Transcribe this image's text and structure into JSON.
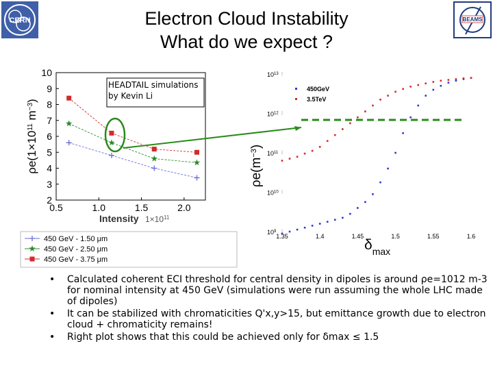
{
  "slide": {
    "title_line1": "Electron Cloud Instability",
    "title_line2": "What do we expect ?",
    "logo_left": "CERN",
    "logo_right": "BEAMS"
  },
  "bullets": [
    {
      "text": "Calculated coherent ECI threshold for central density in dipoles is around ρe=1012 m-3 for nominal intensity at 450 GeV (simulations were run assuming the whole LHC made of dipoles)"
    },
    {
      "text": "It can be stabilized with chromaticities Q'x,y>15, but emittance growth due to electron cloud + chromaticity remains!"
    },
    {
      "text": "Right plot shows that this could be achieved only for δmax ≤ 1.5"
    }
  ],
  "colors": {
    "blue": "#6b6bd8",
    "green": "#2e8b2e",
    "red": "#d42a2a",
    "annot_green": "#2a8a1a"
  },
  "chart_data": [
    {
      "type": "line",
      "annotation": "HEADTAIL simulations by Kevin Li",
      "xlabel": "Intensity",
      "xlabel_multiplier": "1×10",
      "xlabel_multiplier_exp": "11",
      "ylabel": "ρe(1×10",
      "ylabel_exp": "11",
      "ylabel_unit": " m",
      "ylabel_unit_exp": "−3",
      "ylabel_close": ")",
      "xlim": [
        0.5,
        2.25
      ],
      "ylim": [
        2,
        10
      ],
      "xticks": [
        "0.5",
        "1.0",
        "1.5",
        "2.0"
      ],
      "xtick_values": [
        0.5,
        1.0,
        1.5,
        2.0
      ],
      "yticks": [
        "2",
        "3",
        "4",
        "5",
        "6",
        "7",
        "8",
        "9",
        "10"
      ],
      "ytick_values": [
        2,
        3,
        4,
        5,
        6,
        7,
        8,
        9,
        10
      ],
      "series": [
        {
          "name": "450 GeV - 1.50 μm",
          "color": "#6b6bd8",
          "marker": "plus",
          "x": [
            0.65,
            1.15,
            1.65,
            2.15
          ],
          "y": [
            5.6,
            4.8,
            4.0,
            3.4
          ]
        },
        {
          "name": "450 GeV - 2.50 μm",
          "color": "#2e8b2e",
          "marker": "star",
          "x": [
            0.65,
            1.15,
            1.65,
            2.15
          ],
          "y": [
            6.8,
            5.6,
            4.6,
            4.35
          ]
        },
        {
          "name": "450 GeV - 3.75 μm",
          "color": "#d42a2a",
          "marker": "square",
          "x": [
            0.65,
            1.15,
            1.65,
            2.15
          ],
          "y": [
            8.4,
            6.2,
            5.2,
            5.0
          ]
        }
      ]
    },
    {
      "type": "scatter",
      "xlabel": "δ",
      "xlabel_sub": "max",
      "ylabel": "ρe(m",
      "ylabel_exp": "−3",
      "ylabel_close": ")",
      "xlim": [
        1.35,
        1.6
      ],
      "ylim_log10": [
        9,
        13
      ],
      "xticks": [
        "1.35",
        "1.4",
        "1.45",
        "1.5",
        "1.55",
        "1.6"
      ],
      "xtick_values": [
        1.35,
        1.4,
        1.45,
        1.5,
        1.55,
        1.6
      ],
      "yticks_base": "10",
      "yticks_exp": [
        "9",
        "10",
        "11",
        "12",
        "13"
      ],
      "ytick_values_log10": [
        9,
        10,
        11,
        12,
        13
      ],
      "series": [
        {
          "name": "450GeV",
          "color": "#2a3ad0",
          "x": [
            1.35,
            1.36,
            1.37,
            1.38,
            1.39,
            1.4,
            1.41,
            1.42,
            1.43,
            1.44,
            1.45,
            1.46,
            1.47,
            1.48,
            1.49,
            1.5,
            1.51,
            1.52,
            1.53,
            1.54,
            1.55,
            1.56,
            1.57,
            1.58,
            1.59,
            1.6
          ],
          "log10y": [
            8.95,
            9.0,
            9.05,
            9.1,
            9.15,
            9.2,
            9.25,
            9.3,
            9.35,
            9.45,
            9.6,
            9.75,
            9.95,
            10.25,
            10.6,
            11.0,
            11.5,
            11.9,
            12.2,
            12.45,
            12.6,
            12.7,
            12.78,
            12.83,
            12.87,
            12.9
          ]
        },
        {
          "name": "3.5TeV",
          "color": "#d42a2a",
          "x": [
            1.35,
            1.36,
            1.37,
            1.38,
            1.39,
            1.4,
            1.41,
            1.42,
            1.43,
            1.44,
            1.45,
            1.46,
            1.47,
            1.48,
            1.49,
            1.5,
            1.51,
            1.52,
            1.53,
            1.54,
            1.55,
            1.56,
            1.57,
            1.58,
            1.59,
            1.6
          ],
          "log10y": [
            10.8,
            10.85,
            10.9,
            10.98,
            11.05,
            11.15,
            11.3,
            11.45,
            11.6,
            11.75,
            11.9,
            12.05,
            12.2,
            12.35,
            12.45,
            12.55,
            12.62,
            12.68,
            12.72,
            12.76,
            12.8,
            12.83,
            12.85,
            12.87,
            12.89,
            12.9
          ]
        }
      ]
    }
  ]
}
